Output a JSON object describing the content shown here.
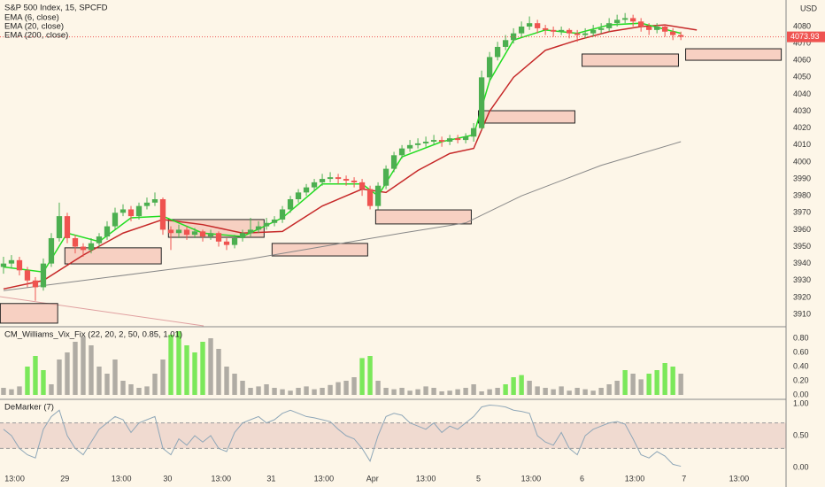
{
  "chart_data": [
    {
      "type": "candlestick",
      "title": "S&P 500 Index, 15, SPCFD",
      "legend": [
        "EMA (6, close)",
        "EMA (20, close)",
        "EMA (200, close)"
      ],
      "currency": "USD",
      "up_color": "#4caf50",
      "down_color": "#ef5350",
      "xlim": [
        -0.44,
        98.2
      ],
      "ylim": [
        3903.2,
        4095.7
      ],
      "yticks": [
        3910,
        3920,
        3930,
        3940,
        3950,
        3960,
        3970,
        3980,
        3990,
        4000,
        4010,
        4020,
        4030,
        4040,
        4050,
        4060,
        4070,
        4080
      ],
      "grid": true,
      "last_price": 4073.93,
      "candles": [
        [
          3938,
          3944,
          3934,
          3940
        ],
        [
          3940,
          3945,
          3937,
          3942
        ],
        [
          3942,
          3944,
          3933,
          3936
        ],
        [
          3936,
          3938,
          3926,
          3930
        ],
        [
          3930,
          3932,
          3918,
          3926
        ],
        [
          3926,
          3943,
          3924,
          3940
        ],
        [
          3940,
          3958,
          3938,
          3955
        ],
        [
          3955,
          3976,
          3953,
          3968
        ],
        [
          3968,
          3970,
          3952,
          3955
        ],
        [
          3955,
          3957,
          3946,
          3950
        ],
        [
          3950,
          3952,
          3944,
          3948
        ],
        [
          3948,
          3955,
          3946,
          3952
        ],
        [
          3952,
          3958,
          3950,
          3956
        ],
        [
          3956,
          3965,
          3954,
          3962
        ],
        [
          3962,
          3973,
          3960,
          3970
        ],
        [
          3970,
          3975,
          3968,
          3972
        ],
        [
          3972,
          3974,
          3965,
          3968
        ],
        [
          3968,
          3976,
          3966,
          3974
        ],
        [
          3974,
          3979,
          3972,
          3976
        ],
        [
          3976,
          3982,
          3974,
          3978
        ],
        [
          3978,
          3979,
          3957,
          3960
        ],
        [
          3960,
          3962,
          3948,
          3958
        ],
        [
          3958,
          3963,
          3955,
          3960
        ],
        [
          3960,
          3962,
          3954,
          3957
        ],
        [
          3957,
          3961,
          3955,
          3959
        ],
        [
          3959,
          3960,
          3953,
          3956
        ],
        [
          3956,
          3960,
          3954,
          3958
        ],
        [
          3958,
          3959,
          3950,
          3953
        ],
        [
          3953,
          3955,
          3948,
          3951
        ],
        [
          3951,
          3957,
          3949,
          3955
        ],
        [
          3955,
          3960,
          3953,
          3958
        ],
        [
          3958,
          3967,
          3956,
          3960
        ],
        [
          3960,
          3965,
          3958,
          3962
        ],
        [
          3962,
          3967,
          3960,
          3964
        ],
        [
          3964,
          3968,
          3962,
          3966
        ],
        [
          3966,
          3974,
          3964,
          3972
        ],
        [
          3972,
          3980,
          3970,
          3978
        ],
        [
          3978,
          3984,
          3976,
          3982
        ],
        [
          3982,
          3987,
          3980,
          3985
        ],
        [
          3985,
          3990,
          3983,
          3988
        ],
        [
          3988,
          3993,
          3986,
          3990
        ],
        [
          3990,
          3994,
          3988,
          3991
        ],
        [
          3991,
          3993,
          3987,
          3990
        ],
        [
          3990,
          3992,
          3986,
          3989
        ],
        [
          3989,
          3991,
          3985,
          3988
        ],
        [
          3988,
          3990,
          3980,
          3984
        ],
        [
          3984,
          3986,
          3972,
          3974
        ],
        [
          3974,
          3988,
          3972,
          3986
        ],
        [
          3986,
          3998,
          3984,
          3996
        ],
        [
          3996,
          4006,
          3994,
          4004
        ],
        [
          4004,
          4010,
          4002,
          4008
        ],
        [
          4008,
          4013,
          4006,
          4010
        ],
        [
          4010,
          4014,
          4008,
          4011
        ],
        [
          4011,
          4015,
          4009,
          4012
        ],
        [
          4012,
          4016,
          4010,
          4013
        ],
        [
          4013,
          4015,
          4009,
          4012
        ],
        [
          4012,
          4016,
          4010,
          4014
        ],
        [
          4014,
          4016,
          4011,
          4013
        ],
        [
          4013,
          4017,
          4011,
          4015
        ],
        [
          4015,
          4023,
          4012,
          4020
        ],
        [
          4020,
          4054,
          4019,
          4050
        ],
        [
          4050,
          4065,
          4048,
          4062
        ],
        [
          4062,
          4071,
          4060,
          4068
        ],
        [
          4068,
          4075,
          4066,
          4072
        ],
        [
          4072,
          4079,
          4070,
          4076
        ],
        [
          4076,
          4083,
          4074,
          4080
        ],
        [
          4080,
          4086,
          4078,
          4082
        ],
        [
          4082,
          4084,
          4076,
          4079
        ],
        [
          4079,
          4081,
          4075,
          4078
        ],
        [
          4078,
          4080,
          4074,
          4077
        ],
        [
          4077,
          4080,
          4075,
          4078
        ],
        [
          4078,
          4079,
          4073,
          4076
        ],
        [
          4076,
          4078,
          4071,
          4075
        ],
        [
          4075,
          4079,
          4073,
          4076
        ],
        [
          4076,
          4081,
          4074,
          4078
        ],
        [
          4078,
          4082,
          4076,
          4079
        ],
        [
          4079,
          4085,
          4077,
          4082
        ],
        [
          4082,
          4087,
          4080,
          4084
        ],
        [
          4084,
          4088,
          4082,
          4085
        ],
        [
          4085,
          4087,
          4080,
          4083
        ],
        [
          4083,
          4085,
          4077,
          4080
        ],
        [
          4080,
          4082,
          4075,
          4078
        ],
        [
          4078,
          4082,
          4076,
          4080
        ],
        [
          4080,
          4081,
          4074,
          4077
        ],
        [
          4077,
          4079,
          4072,
          4075
        ],
        [
          4075,
          4077,
          4072,
          4074
        ]
      ],
      "lines": [
        {
          "name": "EMA (6, close)",
          "color": "#22dd22",
          "x": [
            0,
            5,
            8,
            12,
            16,
            20,
            25,
            30,
            35,
            40,
            45,
            47,
            50,
            55,
            59,
            61,
            64,
            68,
            72,
            76,
            80,
            85
          ],
          "values": [
            3938,
            3935,
            3958,
            3953,
            3967,
            3968,
            3958,
            3956,
            3967,
            3987,
            3987,
            3980,
            4003,
            4012,
            4016,
            4048,
            4072,
            4078,
            4076,
            4081,
            4082,
            4076
          ]
        },
        {
          "name": "EMA (20, close)",
          "color": "#c62828",
          "x": [
            0,
            5,
            10,
            15,
            20,
            25,
            30,
            35,
            40,
            45,
            48,
            52,
            56,
            59,
            61,
            64,
            68,
            72,
            76,
            80,
            83,
            87
          ],
          "values": [
            3925,
            3930,
            3945,
            3958,
            3966,
            3963,
            3958,
            3959,
            3974,
            3984,
            3982,
            3995,
            4005,
            4008,
            4030,
            4050,
            4066,
            4072,
            4077,
            4080,
            4081,
            4078
          ]
        },
        {
          "name": "EMA (200, close)",
          "color": "#888888",
          "x": [
            0,
            10,
            20,
            30,
            40,
            50,
            58,
            65,
            75,
            85
          ],
          "values": [
            3924,
            3930,
            3936,
            3942,
            3950,
            3958,
            3964,
            3980,
            3998,
            4012
          ]
        }
      ],
      "zones": [
        [
          -0.4,
          6.8,
          3916.4,
          3904.8
        ],
        [
          7.7,
          19.8,
          3949.3,
          3939.8
        ],
        [
          20.7,
          32.7,
          3966,
          3955.5
        ],
        [
          33.7,
          45.7,
          3951.9,
          3944.5
        ],
        [
          46.7,
          58.7,
          3971.7,
          3963.4
        ],
        [
          59.6,
          71.7,
          4030.3,
          4023
        ],
        [
          72.6,
          84.7,
          4063.8,
          4056.5
        ],
        [
          85.6,
          97.6,
          4066.9,
          4060.1
        ]
      ]
    },
    {
      "type": "bar",
      "title": "CM_Williams_Vix_Fix (22, 20, 2, 50, 0.85, 1.01)",
      "xlim": [
        -0.44,
        98.2
      ],
      "ylim": [
        -0.05,
        0.95
      ],
      "yticks": [
        {
          "value": 0,
          "label": "0.00"
        },
        {
          "value": 0.2,
          "label": "0.20"
        },
        {
          "value": 0.4,
          "label": "0.40"
        },
        {
          "value": 0.6,
          "label": "0.60"
        },
        {
          "value": 0.8,
          "label": "0.80"
        }
      ],
      "values": [
        0.1,
        0.08,
        0.12,
        0.4,
        0.55,
        0.35,
        0.15,
        0.5,
        0.6,
        0.75,
        0.82,
        0.7,
        0.4,
        0.3,
        0.5,
        0.2,
        0.15,
        0.1,
        0.12,
        0.3,
        0.5,
        0.85,
        0.9,
        0.7,
        0.6,
        0.75,
        0.8,
        0.65,
        0.4,
        0.3,
        0.2,
        0.1,
        0.12,
        0.15,
        0.1,
        0.08,
        0.06,
        0.1,
        0.12,
        0.08,
        0.1,
        0.14,
        0.18,
        0.2,
        0.25,
        0.52,
        0.55,
        0.2,
        0.1,
        0.08,
        0.1,
        0.06,
        0.08,
        0.12,
        0.1,
        0.05,
        0.06,
        0.08,
        0.1,
        0.15,
        0.05,
        0.08,
        0.1,
        0.15,
        0.25,
        0.28,
        0.2,
        0.12,
        0.1,
        0.08,
        0.12,
        0.06,
        0.1,
        0.08,
        0.06,
        0.1,
        0.15,
        0.2,
        0.35,
        0.3,
        0.22,
        0.3,
        0.35,
        0.45,
        0.4,
        0.3
      ],
      "colors": [
        "#b0aca4",
        "#b0aca4",
        "#b0aca4",
        "#7be85a",
        "#7be85a",
        "#7be85a",
        "#b0aca4",
        "#b0aca4",
        "#b0aca4",
        "#b0aca4",
        "#b0aca4",
        "#b0aca4",
        "#b0aca4",
        "#b0aca4",
        "#b0aca4",
        "#b0aca4",
        "#b0aca4",
        "#b0aca4",
        "#b0aca4",
        "#b0aca4",
        "#b0aca4",
        "#7be85a",
        "#7be85a",
        "#7be85a",
        "#7be85a",
        "#7be85a",
        "#b0aca4",
        "#b0aca4",
        "#b0aca4",
        "#b0aca4",
        "#b0aca4",
        "#b0aca4",
        "#b0aca4",
        "#b0aca4",
        "#b0aca4",
        "#b0aca4",
        "#b0aca4",
        "#b0aca4",
        "#b0aca4",
        "#b0aca4",
        "#b0aca4",
        "#b0aca4",
        "#b0aca4",
        "#b0aca4",
        "#b0aca4",
        "#7be85a",
        "#7be85a",
        "#b0aca4",
        "#b0aca4",
        "#b0aca4",
        "#b0aca4",
        "#b0aca4",
        "#b0aca4",
        "#b0aca4",
        "#b0aca4",
        "#b0aca4",
        "#b0aca4",
        "#b0aca4",
        "#b0aca4",
        "#b0aca4",
        "#b0aca4",
        "#b0aca4",
        "#b0aca4",
        "#7be85a",
        "#7be85a",
        "#7be85a",
        "#b0aca4",
        "#b0aca4",
        "#b0aca4",
        "#b0aca4",
        "#b0aca4",
        "#b0aca4",
        "#b0aca4",
        "#b0aca4",
        "#b0aca4",
        "#b0aca4",
        "#b0aca4",
        "#b0aca4",
        "#7be85a",
        "#b0aca4",
        "#b0aca4",
        "#7be85a",
        "#7be85a",
        "#7be85a",
        "#7be85a",
        "#b0aca4"
      ]
    },
    {
      "type": "line",
      "title": "DeMarker (7)",
      "color": "#8fa7b8",
      "band_color": "#e8c8c0",
      "xlim": [
        -0.44,
        98.2
      ],
      "ylim": [
        -0.278,
        1.056
      ],
      "yticks": [
        {
          "value": 0,
          "label": "0.00"
        },
        {
          "value": 0.5,
          "label": "0.50"
        },
        {
          "value": 1,
          "label": "1.00"
        }
      ],
      "bands": [
        0.3,
        0.7
      ],
      "xticks": [
        {
          "value": 1.4,
          "label": "13:00"
        },
        {
          "value": 7.7,
          "label": "29"
        },
        {
          "value": 14.8,
          "label": "13:00"
        },
        {
          "value": 20.6,
          "label": "30"
        },
        {
          "value": 27.3,
          "label": "13:00"
        },
        {
          "value": 33.6,
          "label": "31"
        },
        {
          "value": 40.2,
          "label": "13:00"
        },
        {
          "value": 46.3,
          "label": "Apr"
        },
        {
          "value": 53,
          "label": "13:00"
        },
        {
          "value": 59.6,
          "label": "5"
        },
        {
          "value": 66.2,
          "label": "13:00"
        },
        {
          "value": 72.6,
          "label": "6"
        },
        {
          "value": 79.2,
          "label": "13:00"
        },
        {
          "value": 85.4,
          "label": "7"
        },
        {
          "value": 92.3,
          "label": "13:00"
        }
      ],
      "values": [
        0.6,
        0.5,
        0.3,
        0.2,
        0.15,
        0.6,
        0.8,
        0.9,
        0.5,
        0.3,
        0.2,
        0.4,
        0.6,
        0.7,
        0.8,
        0.75,
        0.55,
        0.7,
        0.75,
        0.8,
        0.3,
        0.2,
        0.45,
        0.35,
        0.5,
        0.4,
        0.5,
        0.3,
        0.25,
        0.55,
        0.7,
        0.75,
        0.8,
        0.7,
        0.75,
        0.85,
        0.9,
        0.85,
        0.8,
        0.78,
        0.75,
        0.72,
        0.6,
        0.5,
        0.45,
        0.3,
        0.1,
        0.5,
        0.8,
        0.85,
        0.82,
        0.7,
        0.65,
        0.6,
        0.7,
        0.55,
        0.65,
        0.6,
        0.7,
        0.8,
        0.95,
        0.98,
        0.97,
        0.95,
        0.9,
        0.88,
        0.85,
        0.5,
        0.4,
        0.35,
        0.55,
        0.3,
        0.2,
        0.5,
        0.6,
        0.65,
        0.7,
        0.72,
        0.68,
        0.45,
        0.2,
        0.15,
        0.25,
        0.18,
        0.05,
        0.02
      ]
    }
  ]
}
